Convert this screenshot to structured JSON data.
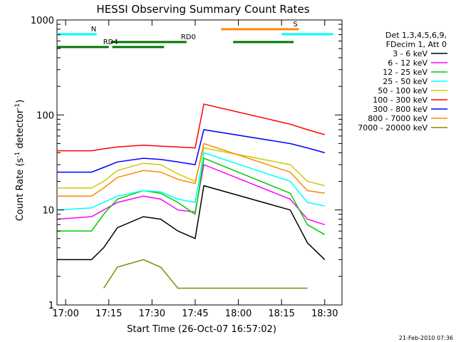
{
  "chart_data": {
    "type": "line",
    "title": "HESSI Observing Summary Count Rates",
    "xlabel": "Start Time (26-Oct-07 16:57:02)",
    "ylabel_main": "Count Rate (s",
    "ylabel_sup1": "-1",
    "ylabel_mid": " detector",
    "ylabel_sup2": "-1",
    "ylabel_end": ")",
    "y_scale": "log",
    "xlim_min": [
      16.95,
      18.6
    ],
    "ylim": [
      1,
      1000
    ],
    "x_ticks": [
      {
        "label": "17:00",
        "min": 17.0
      },
      {
        "label": "17:15",
        "min": 17.25
      },
      {
        "label": "17:30",
        "min": 17.5
      },
      {
        "label": "17:45",
        "min": 17.75
      },
      {
        "label": "18:00",
        "min": 18.0
      },
      {
        "label": "18:15",
        "min": 18.25
      },
      {
        "label": "18:30",
        "min": 18.5
      }
    ],
    "y_ticks": [
      {
        "label": "1",
        "value": 1
      },
      {
        "label": "10",
        "value": 10
      },
      {
        "label": "100",
        "value": 100
      },
      {
        "label": "1000",
        "value": 1000
      }
    ],
    "legend_header": [
      "Det 1,3,4,5,6,9,",
      "FDecim 1, Att 0"
    ],
    "legend_placement": "right",
    "series": [
      {
        "name": "3 - 6 keV",
        "color": "#000000",
        "points": [
          [
            16.95,
            3.0
          ],
          [
            17.15,
            3.0
          ],
          [
            17.22,
            4.0
          ],
          [
            17.3,
            6.5
          ],
          [
            17.45,
            8.5
          ],
          [
            17.55,
            8.0
          ],
          [
            17.65,
            6.0
          ],
          [
            17.75,
            5.0
          ],
          [
            17.8,
            18
          ],
          [
            18.3,
            10
          ],
          [
            18.4,
            4.5
          ],
          [
            18.5,
            3.0
          ]
        ]
      },
      {
        "name": "6 - 12 keV",
        "color": "#ff00ff",
        "points": [
          [
            16.95,
            8.0
          ],
          [
            17.15,
            8.5
          ],
          [
            17.22,
            10
          ],
          [
            17.3,
            12
          ],
          [
            17.45,
            14
          ],
          [
            17.55,
            13
          ],
          [
            17.65,
            10
          ],
          [
            17.75,
            9.5
          ],
          [
            17.8,
            30
          ],
          [
            18.3,
            13
          ],
          [
            18.4,
            8.0
          ],
          [
            18.5,
            7.0
          ]
        ]
      },
      {
        "name": "12 - 25 keV",
        "color": "#00cc00",
        "points": [
          [
            16.95,
            6.0
          ],
          [
            17.15,
            6.0
          ],
          [
            17.22,
            9.0
          ],
          [
            17.3,
            13
          ],
          [
            17.45,
            16
          ],
          [
            17.55,
            15
          ],
          [
            17.65,
            12
          ],
          [
            17.75,
            9.0
          ],
          [
            17.8,
            35
          ],
          [
            18.3,
            15
          ],
          [
            18.4,
            7.0
          ],
          [
            18.5,
            5.5
          ]
        ]
      },
      {
        "name": "25 - 50 keV",
        "color": "#00ffff",
        "points": [
          [
            16.95,
            10
          ],
          [
            17.15,
            10.5
          ],
          [
            17.22,
            12
          ],
          [
            17.3,
            14
          ],
          [
            17.45,
            16
          ],
          [
            17.55,
            15.5
          ],
          [
            17.65,
            13
          ],
          [
            17.75,
            12
          ],
          [
            17.8,
            40
          ],
          [
            18.3,
            20
          ],
          [
            18.4,
            12
          ],
          [
            18.5,
            11
          ]
        ]
      },
      {
        "name": "50 - 100 keV",
        "color": "#cccc00",
        "points": [
          [
            16.95,
            17
          ],
          [
            17.15,
            17
          ],
          [
            17.22,
            20
          ],
          [
            17.3,
            26
          ],
          [
            17.45,
            31
          ],
          [
            17.55,
            30
          ],
          [
            17.65,
            24
          ],
          [
            17.75,
            20
          ],
          [
            17.8,
            45
          ],
          [
            18.3,
            30
          ],
          [
            18.4,
            20
          ],
          [
            18.5,
            18
          ]
        ]
      },
      {
        "name": "100 - 300 keV",
        "color": "#ff0000",
        "points": [
          [
            16.95,
            42
          ],
          [
            17.15,
            42
          ],
          [
            17.22,
            44
          ],
          [
            17.3,
            46
          ],
          [
            17.45,
            48
          ],
          [
            17.55,
            47
          ],
          [
            17.65,
            46
          ],
          [
            17.75,
            45
          ],
          [
            17.8,
            130
          ],
          [
            18.3,
            80
          ],
          [
            18.4,
            70
          ],
          [
            18.5,
            62
          ]
        ]
      },
      {
        "name": "300 - 800 keV",
        "color": "#0000ff",
        "points": [
          [
            16.95,
            25
          ],
          [
            17.15,
            25
          ],
          [
            17.22,
            28
          ],
          [
            17.3,
            32
          ],
          [
            17.45,
            35
          ],
          [
            17.55,
            34
          ],
          [
            17.65,
            32
          ],
          [
            17.75,
            30
          ],
          [
            17.8,
            70
          ],
          [
            18.3,
            50
          ],
          [
            18.4,
            45
          ],
          [
            18.5,
            40
          ]
        ]
      },
      {
        "name": "800 - 7000 keV",
        "color": "#ff8800",
        "points": [
          [
            16.95,
            14
          ],
          [
            17.15,
            14
          ],
          [
            17.22,
            17
          ],
          [
            17.3,
            22
          ],
          [
            17.45,
            26
          ],
          [
            17.55,
            25
          ],
          [
            17.65,
            21
          ],
          [
            17.75,
            19
          ],
          [
            17.8,
            50
          ],
          [
            18.3,
            25
          ],
          [
            18.4,
            16
          ],
          [
            18.5,
            15
          ]
        ]
      },
      {
        "name": "7000 - 20000 keV",
        "color": "#888800",
        "points": [
          [
            17.22,
            1.5
          ],
          [
            17.3,
            2.5
          ],
          [
            17.45,
            3.0
          ],
          [
            17.55,
            2.5
          ],
          [
            17.65,
            1.5
          ],
          [
            18.4,
            1.5
          ]
        ]
      }
    ],
    "flags": [
      {
        "label": "N",
        "color": "#00ffff",
        "segments": [
          [
            16.95,
            17.18
          ],
          [
            18.25,
            18.55
          ]
        ]
      },
      {
        "label": "RD0",
        "color": "#007700",
        "segments": [
          [
            17.26,
            17.7
          ],
          [
            17.97,
            18.32
          ]
        ]
      },
      {
        "label": "RD4",
        "color": "#007700",
        "segments": [
          [
            16.95,
            17.25
          ],
          [
            17.27,
            17.57
          ]
        ]
      },
      {
        "label": "S",
        "color": "#ff8800",
        "segments": [
          [
            17.9,
            18.35
          ]
        ]
      }
    ],
    "timestamp": "21-Feb-2010 07:36"
  }
}
